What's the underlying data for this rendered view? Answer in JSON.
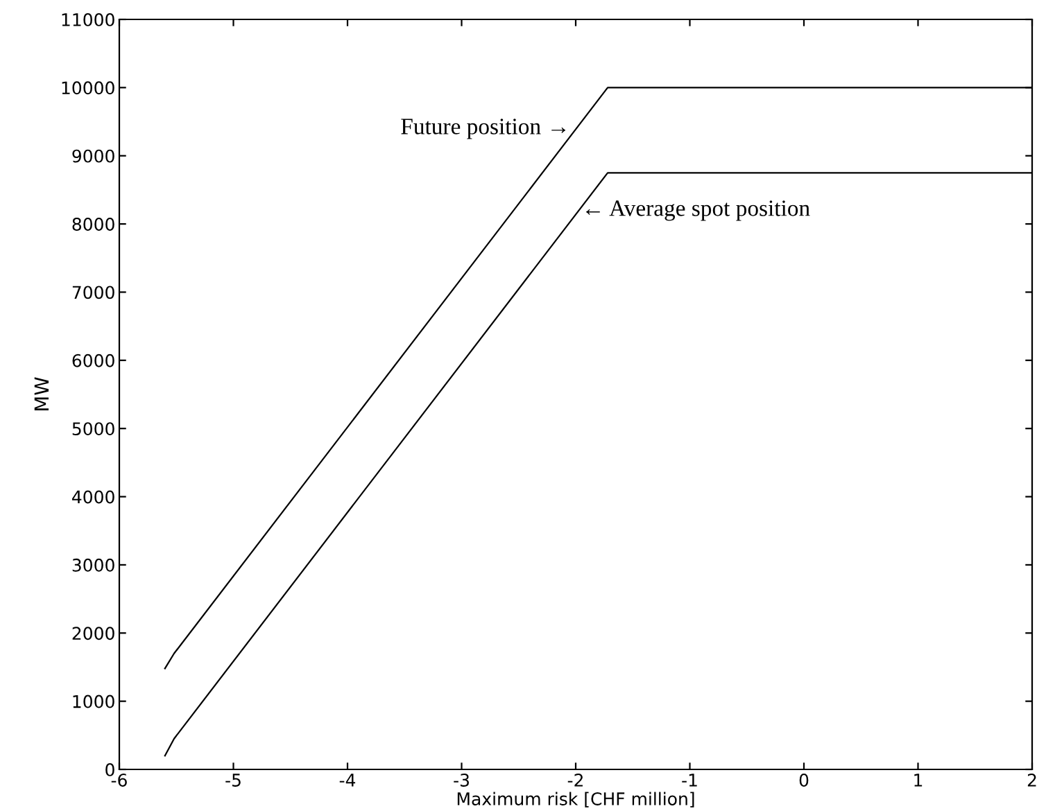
{
  "chart_data": {
    "type": "line",
    "xlabel": "Maximum risk [CHF million]",
    "ylabel": "MW",
    "series": [
      {
        "color": "#000000",
        "x": [
          -5.6,
          -5.52,
          -1.72,
          2
        ],
        "values": [
          1480,
          1700,
          10000,
          10000
        ]
      },
      {
        "color": "#000000",
        "x": [
          -5.6,
          -5.52,
          -1.72,
          2
        ],
        "values": [
          200,
          450,
          8750,
          8750
        ]
      }
    ],
    "annotations": [
      {
        "text": "Future position →",
        "x": -2.05,
        "y": 9400
      },
      {
        "text": "← Average spot position",
        "x": -1.95,
        "y": 8200
      }
    ],
    "xlim": [
      -6,
      2
    ],
    "ylim": [
      0,
      11000
    ],
    "xticks": [
      -6,
      -5,
      -4,
      -3,
      -2,
      -1,
      0,
      1,
      2
    ],
    "yticks": [
      0,
      1000,
      2000,
      3000,
      4000,
      5000,
      6000,
      7000,
      8000,
      9000,
      10000,
      11000
    ],
    "grid": false,
    "marker": "none",
    "line_style": "solid"
  }
}
